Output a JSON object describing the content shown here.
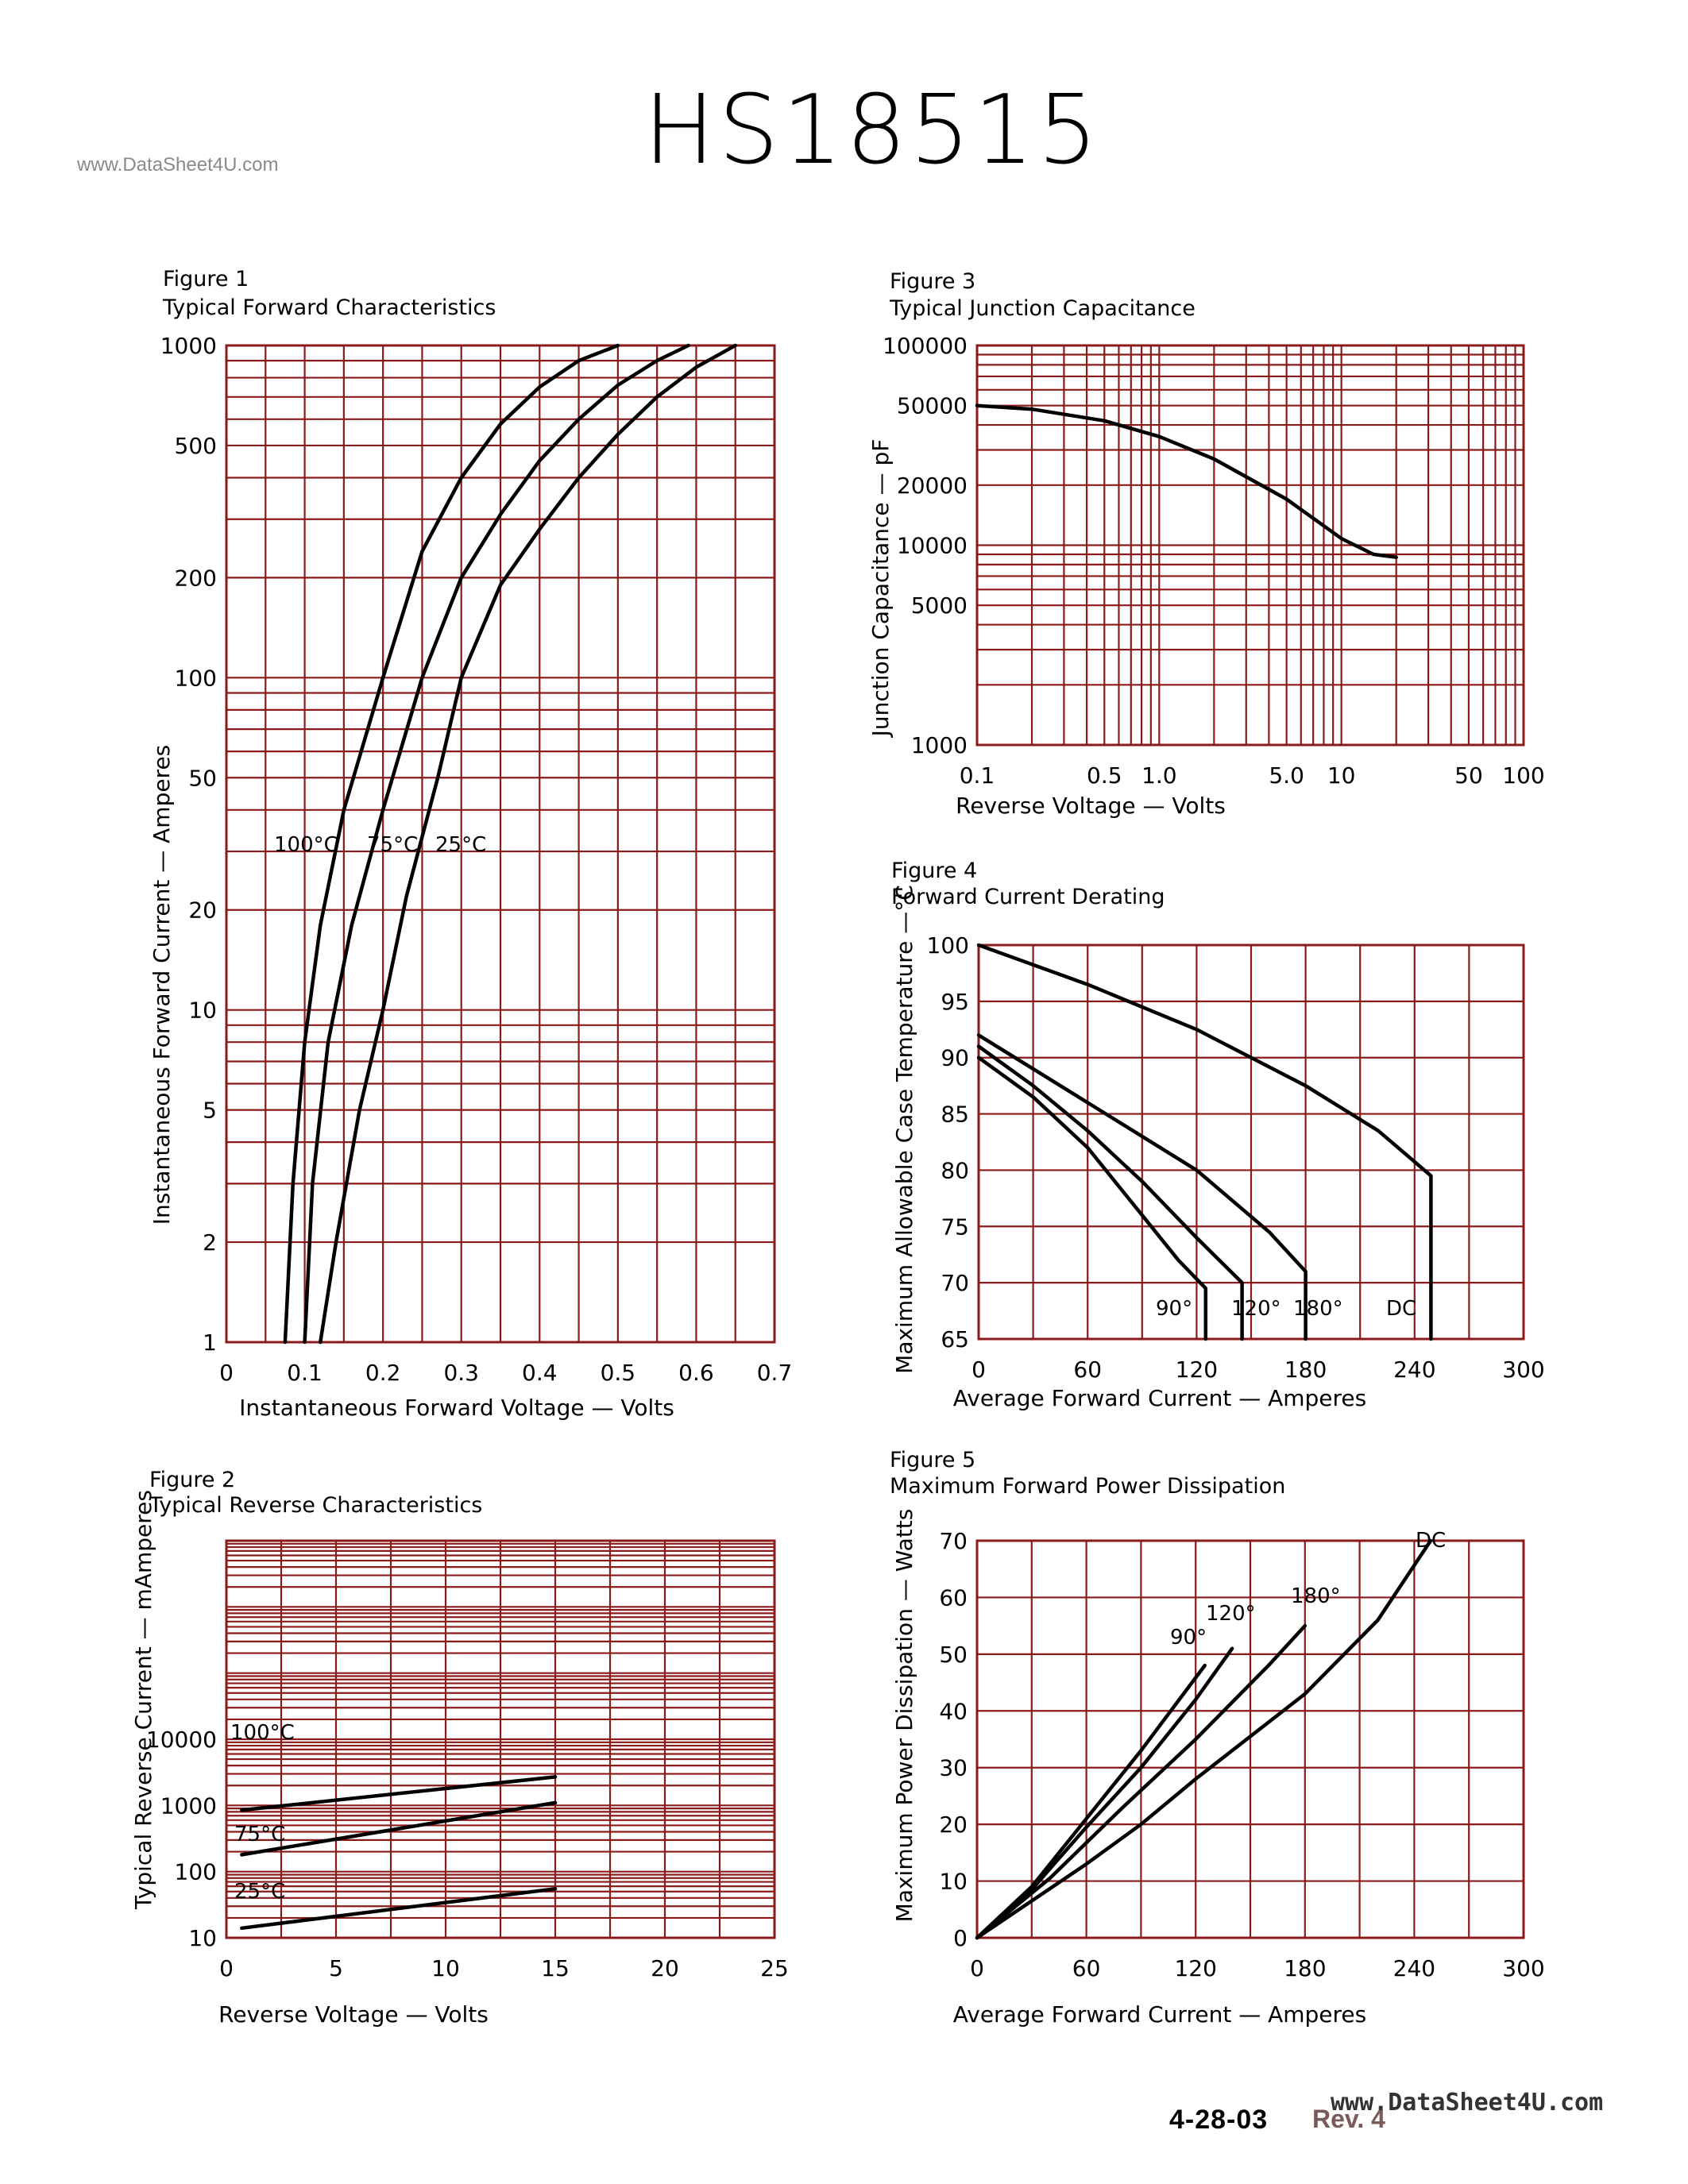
{
  "header": {
    "title": "HS18515",
    "watermark": "www.DataSheet4U.com"
  },
  "footer": {
    "date": "4-28-03",
    "rev": "Rev. 4",
    "watermark": "www.DataSheet4U.com"
  },
  "colors": {
    "grid": "#8b1a1a",
    "curve": "#000000"
  },
  "chart_data": [
    {
      "id": "fig1",
      "type": "line",
      "figure_label": "Figure 1",
      "title": "Typical Forward Characteristics",
      "xlabel": "Instantaneous Forward Voltage — Volts",
      "ylabel": "Instantaneous Forward Current — Amperes",
      "xlim": [
        0,
        0.7
      ],
      "ylim": [
        1,
        1000
      ],
      "y_scale": "log",
      "grid": true,
      "xticks": [
        0,
        0.1,
        0.2,
        0.3,
        0.4,
        0.5,
        0.6,
        0.7
      ],
      "xtick_labels": [
        "0",
        "0.1",
        "0.2",
        "0.3",
        "0.4",
        "0.5",
        "0.6",
        "0.7"
      ],
      "yticks": [
        1,
        2,
        5,
        10,
        20,
        50,
        100,
        200,
        500,
        1000
      ],
      "ytick_labels": [
        "1",
        "2",
        "5",
        "10",
        "20",
        "50",
        "100",
        "200",
        "500",
        "1000"
      ],
      "series": [
        {
          "name": "100°C",
          "x": [
            0.075,
            0.085,
            0.1,
            0.12,
            0.15,
            0.2,
            0.25,
            0.3,
            0.35,
            0.4,
            0.45,
            0.5
          ],
          "y": [
            1,
            3,
            8,
            18,
            40,
            100,
            240,
            400,
            580,
            750,
            900,
            1000
          ]
        },
        {
          "name": "75°C",
          "x": [
            0.1,
            0.11,
            0.13,
            0.16,
            0.2,
            0.25,
            0.3,
            0.35,
            0.4,
            0.45,
            0.5,
            0.55,
            0.59
          ],
          "y": [
            1,
            3,
            8,
            18,
            40,
            100,
            200,
            310,
            450,
            600,
            760,
            900,
            1000
          ]
        },
        {
          "name": "25°C",
          "x": [
            0.12,
            0.14,
            0.17,
            0.2,
            0.23,
            0.27,
            0.3,
            0.35,
            0.4,
            0.45,
            0.5,
            0.55,
            0.6,
            0.65
          ],
          "y": [
            1,
            2,
            5,
            10,
            22,
            50,
            100,
            190,
            280,
            400,
            540,
            700,
            860,
            1000
          ]
        }
      ],
      "curve_labels": [
        {
          "text": "100°C",
          "series": "100°C"
        },
        {
          "text": "75°C",
          "series": "75°C"
        },
        {
          "text": "25°C",
          "series": "25°C"
        }
      ]
    },
    {
      "id": "fig2",
      "type": "line",
      "figure_label": "Figure 2",
      "title": "Typical Reverse Characteristics",
      "xlabel": "Reverse Voltage — Volts",
      "ylabel": "Typical Reverse Current — mAmperes",
      "xlim": [
        0,
        25
      ],
      "ylim": [
        10,
        10000000
      ],
      "y_scale": "log",
      "grid": true,
      "xticks": [
        0,
        5,
        10,
        15,
        20,
        25
      ],
      "xtick_labels": [
        "0",
        "5",
        "10",
        "15",
        "20",
        "25"
      ],
      "yticks": [
        10,
        100,
        1000,
        10000
      ],
      "ytick_labels": [
        "10",
        "100",
        "1000",
        "10000"
      ],
      "series": [
        {
          "name": "100°C",
          "x": [
            0.7,
            15
          ],
          "y": [
            850,
            2700
          ]
        },
        {
          "name": "75°C",
          "x": [
            0.7,
            15
          ],
          "y": [
            180,
            1100
          ]
        },
        {
          "name": "25°C",
          "x": [
            0.7,
            15
          ],
          "y": [
            14,
            55
          ]
        }
      ],
      "curve_labels": [
        {
          "text": "100°C",
          "series": "100°C"
        },
        {
          "text": "75°C",
          "series": "75°C"
        },
        {
          "text": "25°C",
          "series": "25°C"
        }
      ]
    },
    {
      "id": "fig3",
      "type": "line",
      "figure_label": "Figure 3",
      "title": "Typical Junction Capacitance",
      "xlabel": "Reverse Voltage — Volts",
      "ylabel": "Junction Capacitance — pF",
      "xlim": [
        0.1,
        100
      ],
      "ylim": [
        1000,
        100000
      ],
      "x_scale": "log",
      "y_scale": "log",
      "grid": true,
      "xticks": [
        0.1,
        0.5,
        1,
        5,
        10,
        50,
        100
      ],
      "xtick_labels": [
        "0.1",
        "0.5",
        "1.0",
        "5.0",
        "10",
        "50",
        "100"
      ],
      "yticks": [
        1000,
        5000,
        10000,
        20000,
        50000,
        100000
      ],
      "ytick_labels": [
        "1000",
        "5000",
        "10000",
        "20000",
        "50000",
        "100000"
      ],
      "series": [
        {
          "name": "",
          "x": [
            0.1,
            0.2,
            0.5,
            1,
            2,
            5,
            10,
            15,
            20
          ],
          "y": [
            50000,
            48000,
            42000,
            35000,
            27000,
            17000,
            10800,
            9000,
            8700
          ]
        }
      ]
    },
    {
      "id": "fig4",
      "type": "line",
      "figure_label": "Figure 4",
      "title": "Forward Current Derating",
      "xlabel": "Average Forward Current — Amperes",
      "ylabel": "Maximum Allowable Case Temperature —°C",
      "xlim": [
        0,
        300
      ],
      "ylim": [
        65,
        100
      ],
      "grid": true,
      "xticks": [
        0,
        60,
        120,
        180,
        240,
        300
      ],
      "xtick_labels": [
        "0",
        "60",
        "120",
        "180",
        "240",
        "300"
      ],
      "yticks": [
        65,
        70,
        75,
        80,
        85,
        90,
        95,
        100
      ],
      "ytick_labels": [
        "65",
        "70",
        "75",
        "80",
        "85",
        "90",
        "95",
        "100"
      ],
      "series": [
        {
          "name": "90°",
          "x": [
            0,
            30,
            60,
            90,
            110,
            125,
            125
          ],
          "y": [
            90,
            86.5,
            82,
            76,
            72,
            69.5,
            65
          ]
        },
        {
          "name": "120°",
          "x": [
            0,
            30,
            60,
            90,
            120,
            145,
            145
          ],
          "y": [
            91,
            87.5,
            83.5,
            79,
            74,
            70,
            65
          ]
        },
        {
          "name": "180°",
          "x": [
            0,
            40,
            80,
            120,
            160,
            180,
            180
          ],
          "y": [
            92,
            88,
            84,
            80,
            74.5,
            71,
            65
          ]
        },
        {
          "name": "DC",
          "x": [
            0,
            60,
            120,
            180,
            220,
            249,
            249
          ],
          "y": [
            100,
            96.5,
            92.5,
            87.5,
            83.5,
            79.5,
            65
          ]
        }
      ],
      "curve_labels": [
        {
          "text": "90°",
          "series": "90°"
        },
        {
          "text": "120°",
          "series": "120°"
        },
        {
          "text": "180°",
          "series": "180°"
        },
        {
          "text": "DC",
          "series": "DC"
        }
      ]
    },
    {
      "id": "fig5",
      "type": "line",
      "figure_label": "Figure 5",
      "title": "Maximum Forward Power Dissipation",
      "xlabel": "Average Forward Current — Amperes",
      "ylabel": "Maximum Power Dissipation — Watts",
      "xlim": [
        0,
        300
      ],
      "ylim": [
        0,
        70
      ],
      "grid": true,
      "xticks": [
        0,
        60,
        120,
        180,
        240,
        300
      ],
      "xtick_labels": [
        "0",
        "60",
        "120",
        "180",
        "240",
        "300"
      ],
      "yticks": [
        0,
        10,
        20,
        30,
        40,
        50,
        60,
        70
      ],
      "ytick_labels": [
        "0",
        "10",
        "20",
        "30",
        "40",
        "50",
        "60",
        "70"
      ],
      "series": [
        {
          "name": "90°",
          "x": [
            0,
            30,
            60,
            90,
            125
          ],
          "y": [
            0,
            9,
            21,
            33,
            48
          ]
        },
        {
          "name": "120°",
          "x": [
            0,
            30,
            60,
            90,
            120,
            140
          ],
          "y": [
            0,
            8.5,
            19.5,
            30,
            42,
            51
          ]
        },
        {
          "name": "180°",
          "x": [
            0,
            40,
            80,
            120,
            160,
            180
          ],
          "y": [
            0,
            10.5,
            23,
            35,
            48,
            55
          ]
        },
        {
          "name": "DC",
          "x": [
            0,
            60,
            90,
            120,
            180,
            220,
            249
          ],
          "y": [
            0,
            13,
            20,
            28,
            43,
            56,
            70
          ]
        }
      ],
      "curve_labels": [
        {
          "text": "90°",
          "series": "90°"
        },
        {
          "text": "120°",
          "series": "120°"
        },
        {
          "text": "180°",
          "series": "180°"
        },
        {
          "text": "DC",
          "series": "DC"
        }
      ]
    }
  ]
}
